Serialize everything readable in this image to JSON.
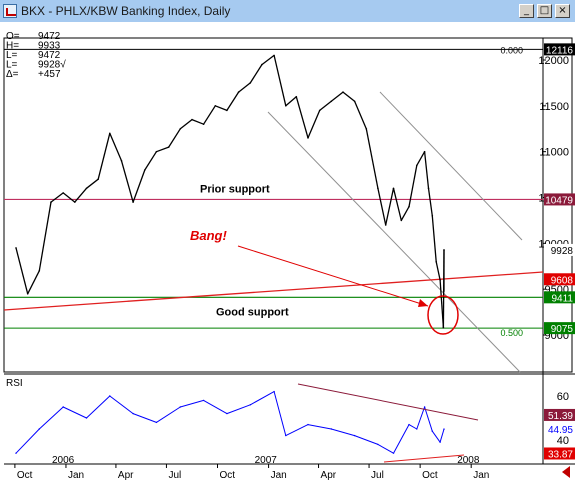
{
  "window": {
    "title": "BKX - PHLX/KBW Banking Index, Daily",
    "buttons": {
      "minimize": "_",
      "maximize": "□",
      "close": "×"
    }
  },
  "ohlc_readout": [
    {
      "label": "O=",
      "value": "9472"
    },
    {
      "label": "H=",
      "value": "9933"
    },
    {
      "label": "L=",
      "value": "9472"
    },
    {
      "label": "L=",
      "value": "9928√"
    },
    {
      "label": "Δ=",
      "value": "+457"
    }
  ],
  "colors": {
    "price": "#000000",
    "rsi": "#0000ff",
    "support_line": "#c03060",
    "trend_line": "#e02020",
    "good_support": "#008000",
    "channel": "#909090",
    "annotation": "#e00000",
    "label_red": "#e00000",
    "label_green": "#008000",
    "label_maroon": "#8b1a3a",
    "label_blue": "#0000ff",
    "label_black": "#000000"
  },
  "chart_data": [
    {
      "type": "line",
      "title": "BKX - PHLX/KBW Banking Index, Daily",
      "x": [
        "2005-10-03",
        "2005-10-24",
        "2005-11-14",
        "2005-12-05",
        "2005-12-27",
        "2006-01-17",
        "2006-02-07",
        "2006-02-28",
        "2006-03-21",
        "2006-04-11",
        "2006-05-02",
        "2006-05-23",
        "2006-06-13",
        "2006-07-05",
        "2006-07-26",
        "2006-08-16",
        "2006-09-06",
        "2006-09-27",
        "2006-10-18",
        "2006-11-08",
        "2006-11-29",
        "2006-12-20",
        "2007-01-11",
        "2007-02-01",
        "2007-02-20",
        "2007-03-13",
        "2007-04-03",
        "2007-04-24",
        "2007-05-15",
        "2007-06-05",
        "2007-06-26",
        "2007-07-17",
        "2007-07-31",
        "2007-08-14",
        "2007-08-28",
        "2007-09-11",
        "2007-09-25",
        "2007-10-09",
        "2007-10-16",
        "2007-10-23",
        "2007-10-30",
        "2007-11-06",
        "2007-11-12",
        "2007-11-13"
      ],
      "series": [
        {
          "values": [
            9950,
            9450,
            9700,
            10450,
            10550,
            10450,
            10600,
            10700,
            11200,
            10900,
            10450,
            10800,
            11000,
            11050,
            11250,
            11350,
            11300,
            11500,
            11450,
            11650,
            11750,
            11950,
            12050,
            11500,
            11600,
            11150,
            11450,
            11550,
            11650,
            11550,
            11250,
            10600,
            10200,
            10600,
            10250,
            10400,
            10850,
            11000,
            10600,
            10300,
            9800,
            9600,
            9080,
            9928
          ]
        }
      ],
      "ohlc_last": {
        "open": 9472,
        "high": 9933,
        "low": 9472,
        "close": 9928,
        "change": 457
      },
      "y_ticks": [
        9000,
        9500,
        10000,
        10500,
        11000,
        11500,
        12000
      ],
      "ylim": [
        8800,
        12150
      ],
      "x_ticks": [
        "Oct",
        "Jan",
        "Apr",
        "Jul",
        "Oct",
        "Jan",
        "Apr",
        "Jul",
        "Oct",
        "Jan"
      ],
      "year_labels": [
        "2006",
        "2007",
        "2008"
      ],
      "value_labels": [
        {
          "text": "12116",
          "value": 12116,
          "style": "black"
        },
        {
          "text": "10479",
          "value": 10479,
          "style": "maroon"
        },
        {
          "text": "9928",
          "value": 9928,
          "style": "plain"
        },
        {
          "text": "9608",
          "value": 9608,
          "style": "red"
        },
        {
          "text": "9411",
          "value": 9411,
          "style": "green"
        },
        {
          "text": "9075",
          "value": 9075,
          "style": "green"
        }
      ],
      "horizontal_lines": [
        {
          "value": 12116,
          "label": "0.000"
        },
        {
          "value": 10479,
          "label": "Prior support"
        },
        {
          "value": 9411,
          "label": "Good support"
        },
        {
          "value": 9075,
          "label": "0.500"
        }
      ],
      "annotations": [
        "Bang!",
        "Prior support",
        "Good support",
        "0.000",
        "0.500"
      ],
      "grid": false
    },
    {
      "type": "line",
      "title": "RSI",
      "x": [
        "2005-10-03",
        "2005-11-14",
        "2005-12-27",
        "2006-02-07",
        "2006-03-21",
        "2006-05-02",
        "2006-06-13",
        "2006-07-26",
        "2006-09-06",
        "2006-10-18",
        "2006-11-29",
        "2007-01-11",
        "2007-02-01",
        "2007-03-13",
        "2007-04-24",
        "2007-06-05",
        "2007-07-17",
        "2007-08-14",
        "2007-09-11",
        "2007-09-25",
        "2007-10-09",
        "2007-10-23",
        "2007-11-06",
        "2007-11-13"
      ],
      "series": [
        {
          "values": [
            34,
            45,
            55,
            50,
            60,
            52,
            48,
            55,
            58,
            52,
            56,
            62,
            42,
            47,
            45,
            42,
            38,
            34,
            47,
            45,
            55,
            44,
            39,
            44.95
          ]
        }
      ],
      "y_ticks": [
        40,
        60
      ],
      "ylim": [
        25,
        75
      ],
      "value_labels": [
        {
          "text": "51.39",
          "value": 51.39,
          "style": "maroon"
        },
        {
          "text": "44.95",
          "value": 44.95,
          "style": "blue"
        },
        {
          "text": "33.87",
          "value": 33.87,
          "style": "red"
        }
      ]
    }
  ]
}
